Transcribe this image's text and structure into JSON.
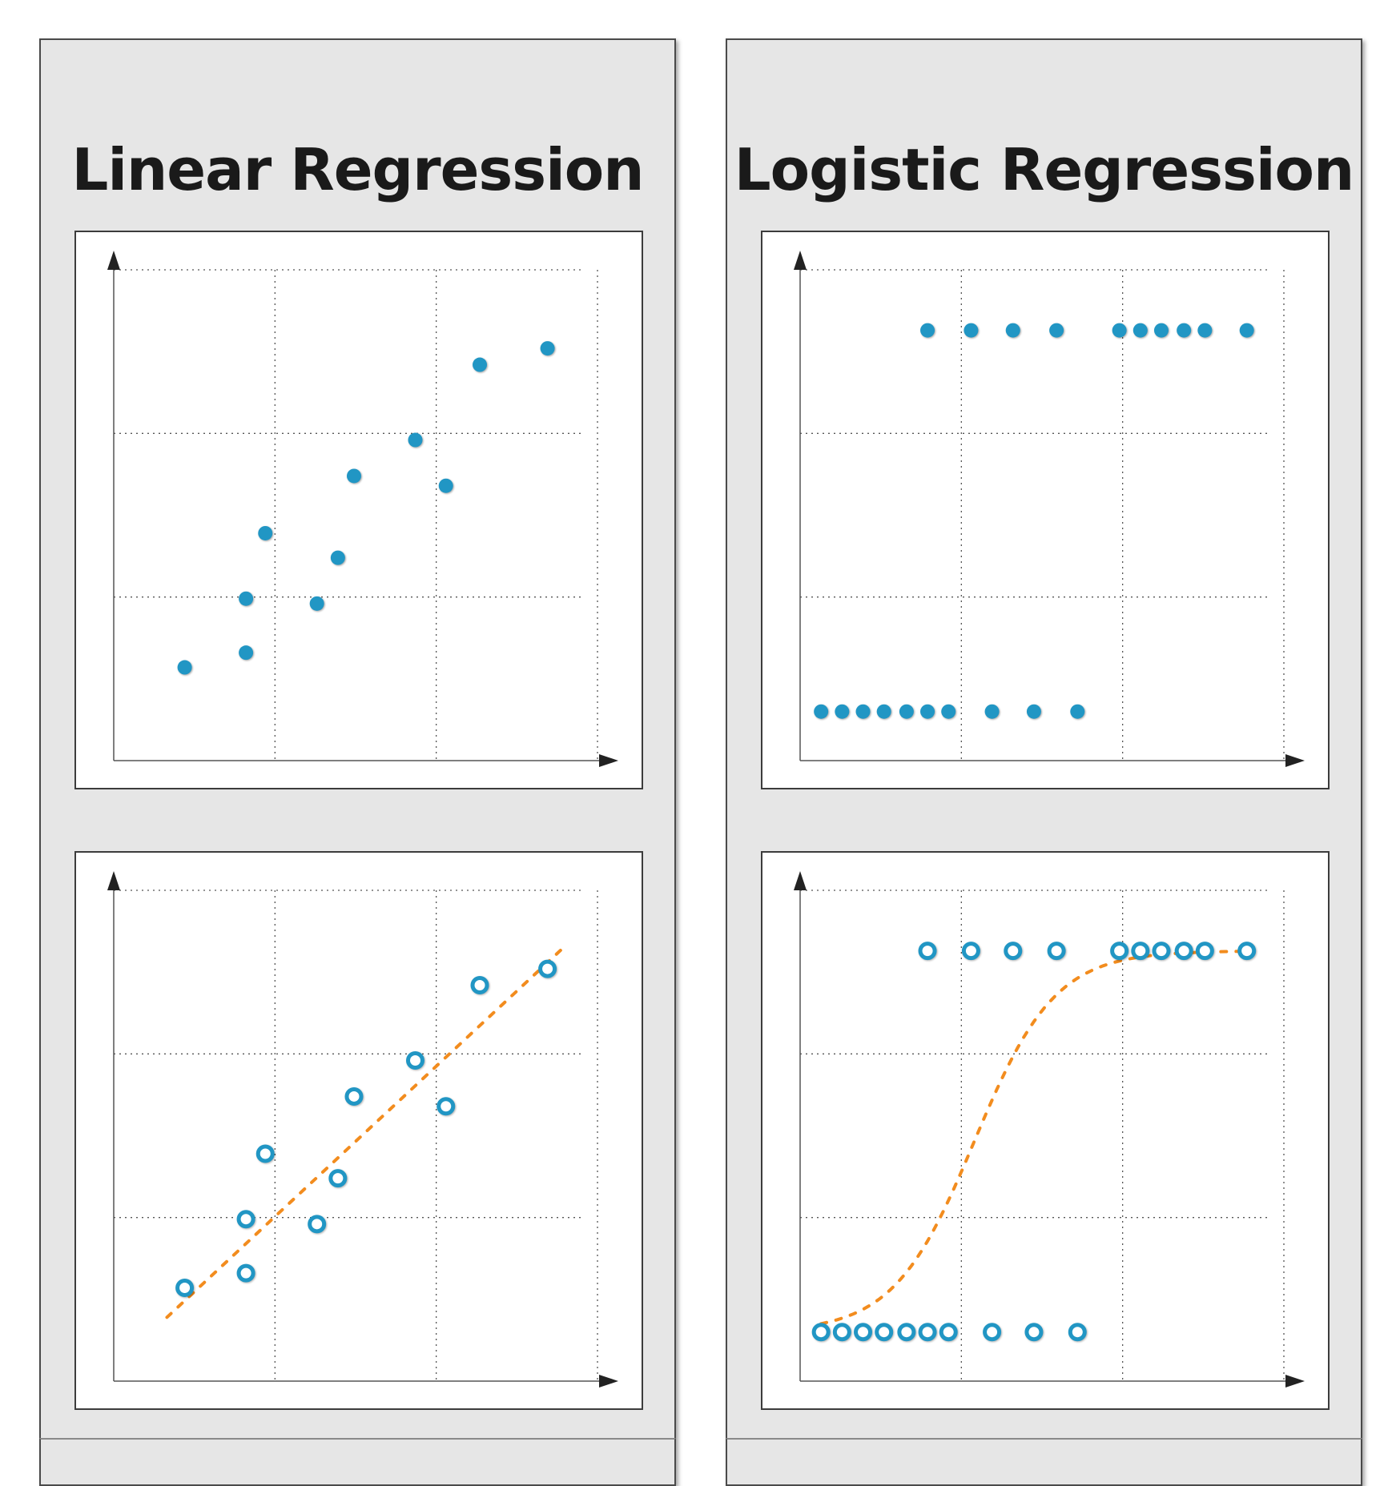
{
  "chart_data": [
    {
      "type": "scatter",
      "title": "Linear Regression",
      "panel": "linear",
      "variant": "points",
      "xlim": [
        0,
        3
      ],
      "ylim": [
        0,
        3
      ],
      "grid": true,
      "xlabel": "",
      "ylabel": "",
      "points": [
        {
          "x": 0.44,
          "y": 0.57
        },
        {
          "x": 0.82,
          "y": 0.66
        },
        {
          "x": 0.82,
          "y": 0.99
        },
        {
          "x": 0.94,
          "y": 1.39
        },
        {
          "x": 1.26,
          "y": 0.96
        },
        {
          "x": 1.39,
          "y": 1.24
        },
        {
          "x": 1.49,
          "y": 1.74
        },
        {
          "x": 1.87,
          "y": 1.96
        },
        {
          "x": 2.06,
          "y": 1.68
        },
        {
          "x": 2.27,
          "y": 2.42
        },
        {
          "x": 2.69,
          "y": 2.52
        }
      ],
      "color": "#2196c4"
    },
    {
      "type": "scatter",
      "title": "Linear Regression",
      "panel": "linear",
      "variant": "fit",
      "xlim": [
        0,
        3
      ],
      "ylim": [
        0,
        3
      ],
      "grid": true,
      "xlabel": "",
      "ylabel": "",
      "points": [
        {
          "x": 0.44,
          "y": 0.57
        },
        {
          "x": 0.82,
          "y": 0.66
        },
        {
          "x": 0.82,
          "y": 0.99
        },
        {
          "x": 0.94,
          "y": 1.39
        },
        {
          "x": 1.26,
          "y": 0.96
        },
        {
          "x": 1.39,
          "y": 1.24
        },
        {
          "x": 1.49,
          "y": 1.74
        },
        {
          "x": 1.87,
          "y": 1.96
        },
        {
          "x": 2.06,
          "y": 1.68
        },
        {
          "x": 2.27,
          "y": 2.42
        },
        {
          "x": 2.69,
          "y": 2.52
        }
      ],
      "fit": {
        "kind": "linear",
        "x": [
          0.33,
          2.8
        ],
        "y": [
          0.39,
          2.66
        ]
      },
      "color": "#2196c4",
      "fit_color": "#f28c1e"
    },
    {
      "type": "scatter",
      "title": "Logistic Regression",
      "panel": "logistic",
      "variant": "points",
      "xlim": [
        0,
        3
      ],
      "ylim": [
        0,
        3
      ],
      "grid": true,
      "xlabel": "",
      "ylabel": "",
      "points": [
        {
          "x": 0.13,
          "y": 0.3
        },
        {
          "x": 0.26,
          "y": 0.3
        },
        {
          "x": 0.39,
          "y": 0.3
        },
        {
          "x": 0.52,
          "y": 0.3
        },
        {
          "x": 0.66,
          "y": 0.3
        },
        {
          "x": 0.79,
          "y": 0.3
        },
        {
          "x": 0.92,
          "y": 0.3
        },
        {
          "x": 1.19,
          "y": 0.3
        },
        {
          "x": 1.45,
          "y": 0.3
        },
        {
          "x": 1.72,
          "y": 0.3
        },
        {
          "x": 0.79,
          "y": 2.63
        },
        {
          "x": 1.06,
          "y": 2.63
        },
        {
          "x": 1.32,
          "y": 2.63
        },
        {
          "x": 1.59,
          "y": 2.63
        },
        {
          "x": 1.98,
          "y": 2.63
        },
        {
          "x": 2.11,
          "y": 2.63
        },
        {
          "x": 2.24,
          "y": 2.63
        },
        {
          "x": 2.38,
          "y": 2.63
        },
        {
          "x": 2.51,
          "y": 2.63
        },
        {
          "x": 2.77,
          "y": 2.63
        }
      ],
      "color": "#2196c4"
    },
    {
      "type": "scatter",
      "title": "Logistic Regression",
      "panel": "logistic",
      "variant": "fit",
      "xlim": [
        0,
        3
      ],
      "ylim": [
        0,
        3
      ],
      "grid": true,
      "xlabel": "",
      "ylabel": "",
      "points": [
        {
          "x": 0.13,
          "y": 0.3
        },
        {
          "x": 0.26,
          "y": 0.3
        },
        {
          "x": 0.39,
          "y": 0.3
        },
        {
          "x": 0.52,
          "y": 0.3
        },
        {
          "x": 0.66,
          "y": 0.3
        },
        {
          "x": 0.79,
          "y": 0.3
        },
        {
          "x": 0.92,
          "y": 0.3
        },
        {
          "x": 1.19,
          "y": 0.3
        },
        {
          "x": 1.45,
          "y": 0.3
        },
        {
          "x": 1.72,
          "y": 0.3
        },
        {
          "x": 0.79,
          "y": 2.63
        },
        {
          "x": 1.06,
          "y": 2.63
        },
        {
          "x": 1.32,
          "y": 2.63
        },
        {
          "x": 1.59,
          "y": 2.63
        },
        {
          "x": 1.98,
          "y": 2.63
        },
        {
          "x": 2.11,
          "y": 2.63
        },
        {
          "x": 2.24,
          "y": 2.63
        },
        {
          "x": 2.38,
          "y": 2.63
        },
        {
          "x": 2.51,
          "y": 2.63
        },
        {
          "x": 2.77,
          "y": 2.63
        }
      ],
      "fit": {
        "kind": "sigmoid",
        "x_range": [
          0.13,
          2.77
        ],
        "low": 0.3,
        "high": 2.63,
        "center": 1.08,
        "scale": 0.25
      },
      "color": "#2196c4",
      "fit_color": "#f28c1e"
    }
  ]
}
